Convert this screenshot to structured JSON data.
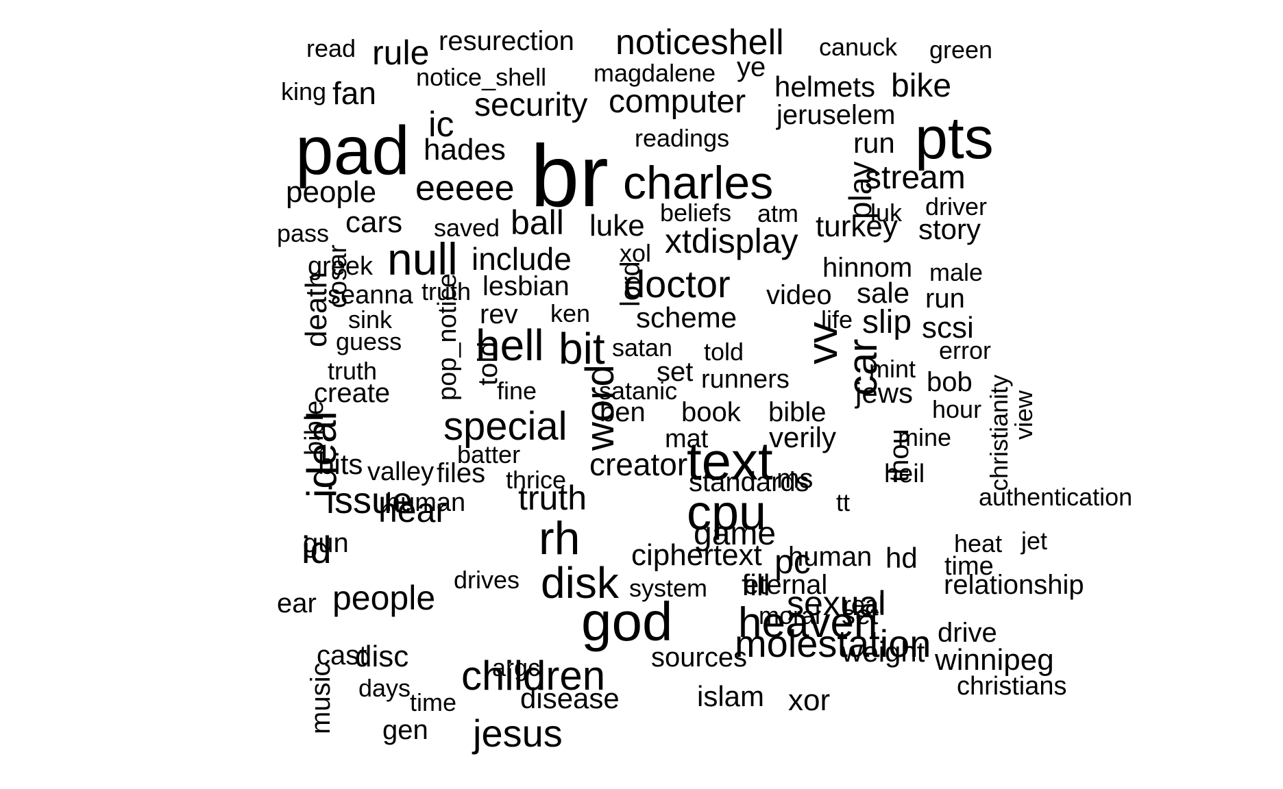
{
  "word_cloud": {
    "text_color": "#000000",
    "background_color": "#ffffff",
    "words": [
      "read",
      "rule",
      "resurection",
      "noticeshell",
      "canuck",
      "green",
      "king",
      "fan",
      "notice_shell",
      "magdalene",
      "ye",
      "helmets",
      "bike",
      "pad",
      "ic",
      "security",
      "computer",
      "jeruselem",
      "pts",
      "readings",
      "hades",
      "br",
      "charles",
      "run",
      "play",
      "stream",
      "people",
      "eeeee",
      "luk",
      "driver",
      "pass",
      "cars",
      "saved",
      "ball",
      "luke",
      "beliefs",
      "atm",
      "turkey",
      "story",
      "null",
      "include",
      "xtdisplay",
      "xol",
      "lord",
      "death",
      "greek",
      "hinnom",
      "male",
      "cosar",
      "seanna",
      "truth",
      "lesbian",
      "doctor",
      "video",
      "sale",
      "run",
      "sink",
      "rev",
      "ken",
      "scheme",
      "life",
      "slip",
      "scsi",
      "guess",
      "pop_notice",
      "told",
      "hell",
      "bit",
      "satan",
      "vv",
      "car",
      "told",
      "error",
      "truth",
      "set",
      "runners",
      "mint",
      "bob",
      "bible",
      "create",
      "fine",
      "satanic",
      "jews",
      "view",
      "word",
      "ben",
      "book",
      "bible",
      "hour",
      "special",
      "mat",
      "verily",
      "mine",
      "batter",
      "valley",
      "files",
      "creator",
      "text",
      "ms",
      "heil",
      "thrice",
      "standards",
      "thou",
      "bits",
      "ideal",
      "issue",
      "cpu",
      "tt",
      "authentication",
      "id",
      "human",
      "hear",
      "truth",
      "game",
      "christianity",
      "jet",
      "gun",
      "rh",
      "ciphertext",
      "human",
      "hd",
      "heat",
      "drives",
      "disk",
      "system",
      "eternal",
      "pc",
      "time",
      "ear",
      "people",
      "god",
      "heaven",
      "moral",
      "real",
      "children",
      "fill",
      "sexual",
      "relationship",
      "set",
      "drive",
      "music",
      "cast",
      "disc",
      "argc",
      "sources",
      "molestation",
      "weight",
      "winnipeg",
      "days",
      "christians",
      "time",
      "disease",
      "islam",
      "xor",
      "gen",
      "jesus"
    ]
  }
}
